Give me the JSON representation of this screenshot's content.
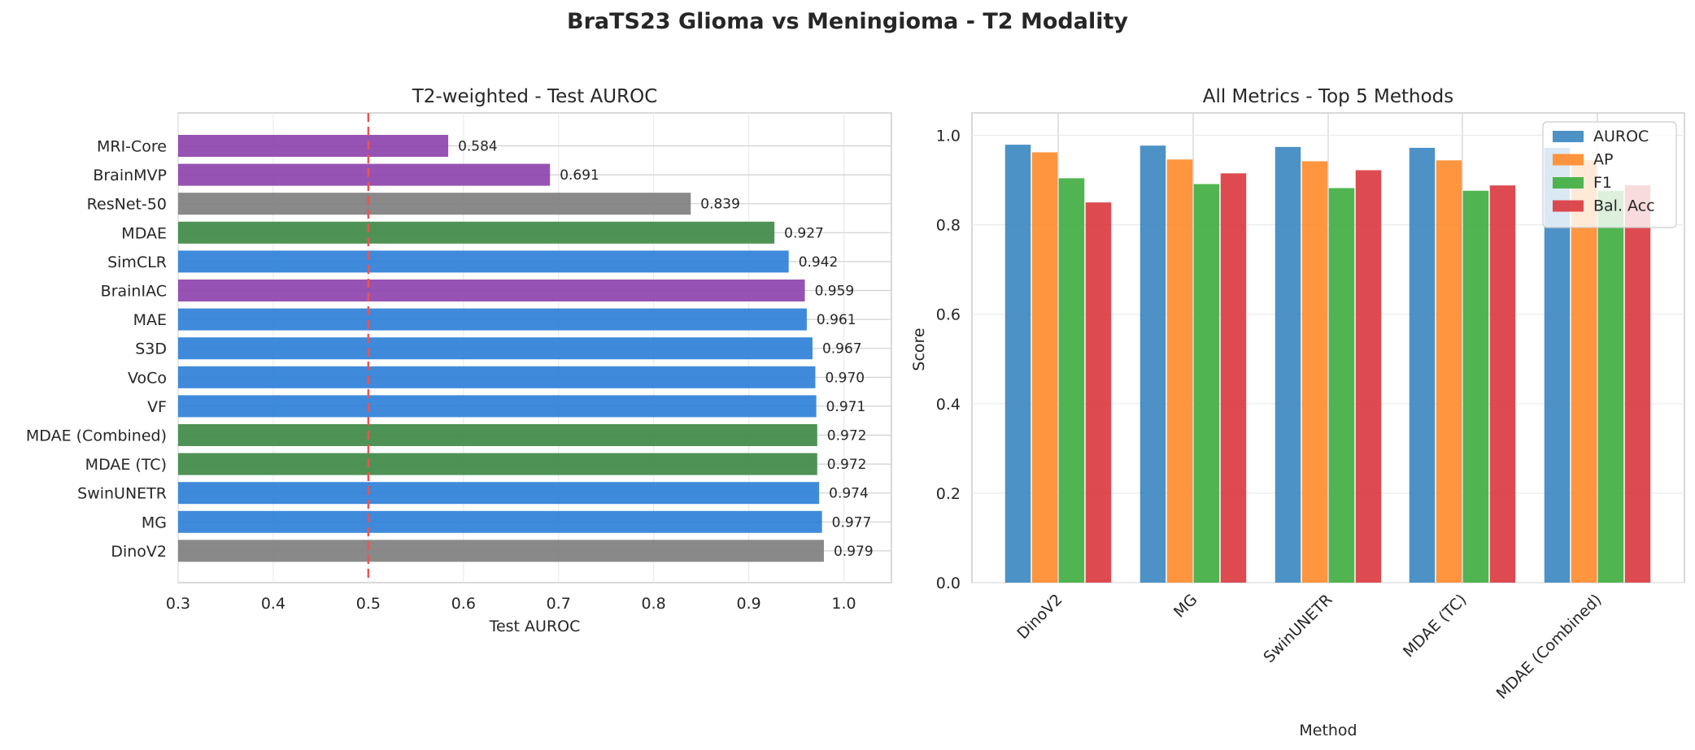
{
  "suptitle": "BraTS23 Glioma vs Meningioma - T2 Modality",
  "colors": {
    "purple": "#8e44ad",
    "gray": "#7f7f7f",
    "green": "#3f8a47",
    "blue": "#2f80d8",
    "ref_line": "#ef5350",
    "auroc": "#3a86c0",
    "ap": "#ff8a2a",
    "f1": "#3dad3d",
    "bal_acc": "#d9373e"
  },
  "chart_data": [
    {
      "type": "bar",
      "orientation": "horizontal",
      "title": "T2-weighted - Test AUROC",
      "xlabel": "Test AUROC",
      "ylabel": "",
      "xlim": [
        0.3,
        1.05
      ],
      "xticks": [
        "0.3",
        "0.4",
        "0.5",
        "0.6",
        "0.7",
        "0.8",
        "0.9",
        "1.0"
      ],
      "reference_line": 0.5,
      "grid": true,
      "categories": [
        "MRI-Core",
        "BrainMVP",
        "ResNet-50",
        "MDAE",
        "SimCLR",
        "BrainIAC",
        "MAE",
        "S3D",
        "VoCo",
        "VF",
        "MDAE (Combined)",
        "MDAE (TC)",
        "SwinUNETR",
        "MG",
        "DinoV2"
      ],
      "values": [
        0.584,
        0.691,
        0.839,
        0.927,
        0.942,
        0.959,
        0.961,
        0.967,
        0.97,
        0.971,
        0.972,
        0.972,
        0.974,
        0.977,
        0.979
      ],
      "value_labels": [
        "0.584",
        "0.691",
        "0.839",
        "0.927",
        "0.942",
        "0.959",
        "0.961",
        "0.967",
        "0.970",
        "0.971",
        "0.972",
        "0.972",
        "0.974",
        "0.977",
        "0.979"
      ],
      "bar_colors": [
        "purple",
        "purple",
        "gray",
        "green",
        "blue",
        "purple",
        "blue",
        "blue",
        "blue",
        "blue",
        "green",
        "green",
        "blue",
        "blue",
        "gray"
      ]
    },
    {
      "type": "bar",
      "title": "All Metrics - Top 5 Methods",
      "xlabel": "Method",
      "ylabel": "Score",
      "ylim": [
        0,
        1.05
      ],
      "yticks": [
        "0.0",
        "0.2",
        "0.4",
        "0.6",
        "0.8",
        "1.0"
      ],
      "grid": true,
      "legend_position": "top-right",
      "categories": [
        "DinoV2",
        "MG",
        "SwinUNETR",
        "MDAE (TC)",
        "MDAE (Combined)"
      ],
      "series": [
        {
          "name": "AUROC",
          "color": "auroc",
          "values": [
            0.979,
            0.977,
            0.974,
            0.972,
            0.972
          ]
        },
        {
          "name": "AP",
          "color": "ap",
          "values": [
            0.962,
            0.946,
            0.942,
            0.944,
            0.944
          ]
        },
        {
          "name": "F1",
          "color": "f1",
          "values": [
            0.904,
            0.891,
            0.882,
            0.876,
            0.876
          ]
        },
        {
          "name": "Bal. Acc",
          "color": "bal_acc",
          "values": [
            0.85,
            0.915,
            0.922,
            0.888,
            0.888
          ]
        }
      ]
    }
  ]
}
